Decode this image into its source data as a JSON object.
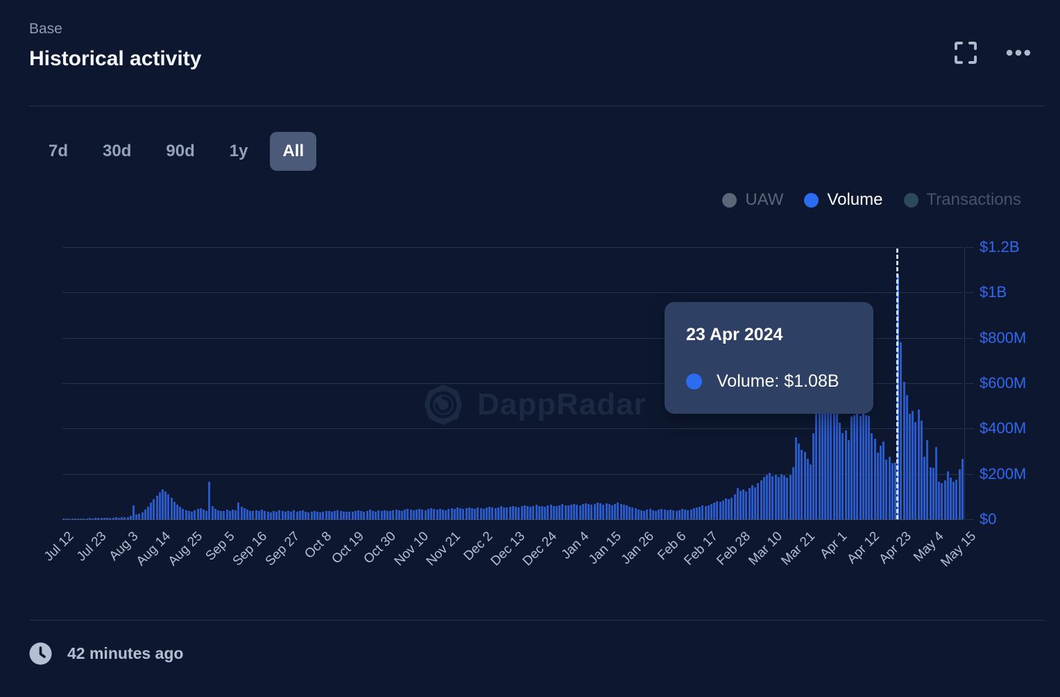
{
  "header": {
    "app_name": "Base",
    "title": "Historical activity"
  },
  "icons": {
    "fullscreen": "fullscreen-expand",
    "menu": "ellipsis-horizontal",
    "updated": "clock"
  },
  "controls": {
    "ranges": [
      "7d",
      "30d",
      "90d",
      "1y",
      "All"
    ],
    "selected": "All"
  },
  "legend": {
    "items": [
      {
        "label": "UAW",
        "dot_color": "#5c6679",
        "text_color": "#5c6679",
        "active": false
      },
      {
        "label": "Volume",
        "dot_color": "#2b6cf0",
        "text_color": "#ffffff",
        "active": true
      },
      {
        "label": "Transactions",
        "dot_color": "#2c4a59",
        "text_color": "#46536c",
        "active": false
      }
    ]
  },
  "tooltip": {
    "date": "23 Apr 2024",
    "series_label": "Volume:",
    "value": "$1.08B"
  },
  "watermark": {
    "text": "DappRadar"
  },
  "footer": {
    "updated_text": "42 minutes ago"
  },
  "colors": {
    "background": "#0d1830",
    "bar": "#2a5ac8",
    "bar_highlight": "#3f78f4",
    "accent_blue": "#2b6cf0",
    "axis_label_blue": "#3467ec",
    "tooltip_bg": "#2e4064",
    "dashed_marker": "#d9e0ea"
  },
  "chart_data": {
    "type": "bar",
    "title": "Historical activity",
    "series_name": "Volume",
    "unit": "$M",
    "start_date": "12 Jul 2023",
    "end_date": "15 May 2024",
    "ylim": [
      0,
      1200
    ],
    "grid": true,
    "legend_position": "top-right",
    "y_ticks": [
      {
        "label": "$1.2B",
        "value": 1200
      },
      {
        "label": "$1B",
        "value": 1000
      },
      {
        "label": "$800M",
        "value": 800
      },
      {
        "label": "$600M",
        "value": 600
      },
      {
        "label": "$400M",
        "value": 400
      },
      {
        "label": "$200M",
        "value": 200
      },
      {
        "label": "$0",
        "value": 0
      }
    ],
    "x_tick_labels": [
      "Jul 12",
      "Jul 23",
      "Aug 3",
      "Aug 14",
      "Aug 25",
      "Sep 5",
      "Sep 16",
      "Sep 27",
      "Oct 8",
      "Oct 19",
      "Oct 30",
      "Nov 10",
      "Nov 21",
      "Dec 2",
      "Dec 13",
      "Dec 24",
      "Jan 4",
      "Jan 15",
      "Jan 26",
      "Feb 6",
      "Feb 17",
      "Feb 28",
      "Mar 10",
      "Mar 21",
      "Apr 1",
      "Apr 12",
      "Apr 23",
      "May 4",
      "May 15"
    ],
    "x_tick_interval_days": 11,
    "highlight_index": 286,
    "highlight_value_label": "$1.08B",
    "values_millions": [
      2,
      2,
      3,
      2,
      3,
      3,
      4,
      3,
      4,
      5,
      4,
      5,
      6,
      5,
      6,
      7,
      6,
      7,
      8,
      7,
      8,
      9,
      10,
      14,
      60,
      20,
      24,
      30,
      42,
      55,
      72,
      90,
      104,
      118,
      132,
      124,
      110,
      94,
      78,
      64,
      54,
      46,
      40,
      36,
      34,
      40,
      46,
      50,
      42,
      38,
      165,
      58,
      46,
      40,
      38,
      36,
      42,
      38,
      44,
      40,
      72,
      55,
      48,
      42,
      38,
      36,
      40,
      36,
      42,
      38,
      34,
      32,
      38,
      35,
      40,
      36,
      33,
      37,
      35,
      40,
      33,
      36,
      39,
      34,
      31,
      35,
      38,
      33,
      31,
      34,
      37,
      36,
      33,
      37,
      41,
      38,
      34,
      33,
      35,
      34,
      36,
      40,
      37,
      34,
      38,
      42,
      37,
      35,
      39,
      37,
      41,
      38,
      36,
      40,
      44,
      40,
      37,
      42,
      45,
      42,
      39,
      43,
      47,
      44,
      41,
      45,
      49,
      46,
      43,
      47,
      44,
      41,
      45,
      49,
      47,
      51,
      48,
      45,
      49,
      53,
      49,
      47,
      51,
      49,
      47,
      51,
      55,
      51,
      49,
      53,
      57,
      53,
      51,
      55,
      59,
      55,
      53,
      57,
      61,
      57,
      55,
      59,
      63,
      59,
      57,
      55,
      60,
      63,
      59,
      57,
      62,
      66,
      62,
      60,
      64,
      68,
      64,
      61,
      66,
      71,
      67,
      63,
      68,
      74,
      69,
      65,
      70,
      66,
      62,
      67,
      72,
      67,
      63,
      60,
      56,
      52,
      48,
      44,
      41,
      38,
      42,
      45,
      41,
      38,
      42,
      46,
      43,
      40,
      44,
      40,
      37,
      41,
      45,
      42,
      39,
      43,
      48,
      52,
      56,
      60,
      57,
      62,
      68,
      74,
      80,
      76,
      84,
      92,
      88,
      96,
      110,
      139,
      126,
      132,
      122,
      138,
      150,
      142,
      158,
      172,
      188,
      196,
      205,
      190,
      196,
      188,
      200,
      192,
      185,
      195,
      230,
      360,
      334,
      307,
      298,
      267,
      242,
      380,
      470,
      500,
      530,
      545,
      520,
      535,
      540,
      515,
      425,
      380,
      392,
      349,
      452,
      460,
      465,
      455,
      470,
      460,
      455,
      381,
      355,
      293,
      324,
      342,
      262,
      277,
      247,
      250,
      1080,
      780,
      607,
      549,
      466,
      477,
      430,
      485,
      436,
      276,
      350,
      231,
      227,
      319,
      166,
      160,
      170,
      211,
      184,
      166,
      175,
      221,
      266
    ]
  }
}
